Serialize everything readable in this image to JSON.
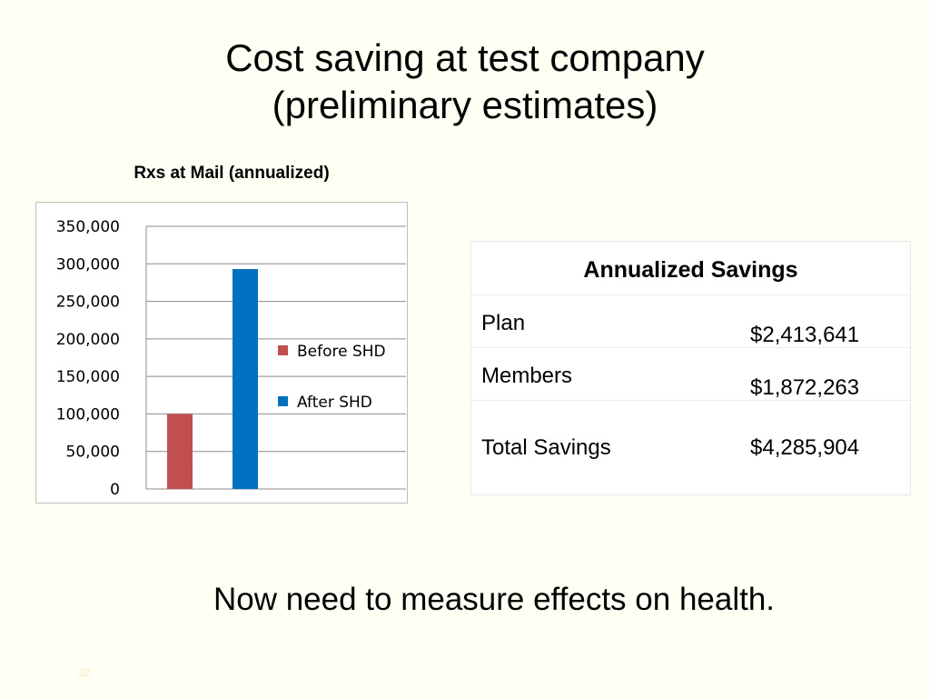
{
  "slide": {
    "title_line1": "Cost saving at test company",
    "title_line2": "(preliminary estimates)",
    "footer": "Now need to measure effects on health.",
    "page_number": "32"
  },
  "chart_data": {
    "type": "bar",
    "title": "Rxs at Mail (annualized)",
    "xlabel": "",
    "ylabel": "",
    "ylim": [
      0,
      350000
    ],
    "yticks": [
      0,
      50000,
      100000,
      150000,
      200000,
      250000,
      300000,
      350000
    ],
    "ytick_labels": [
      "0",
      "50,000",
      "100,000",
      "150,000",
      "200,000",
      "250,000",
      "300,000",
      "350,000"
    ],
    "grid": true,
    "legend_position": "right",
    "series": [
      {
        "name": "Before SHD",
        "values": [
          100000
        ],
        "color": "#c0504d"
      },
      {
        "name": "After SHD",
        "values": [
          293000
        ],
        "color": "#0070c0"
      }
    ]
  },
  "table": {
    "header": "Annualized Savings",
    "rows": [
      {
        "label": "Plan",
        "value": "$2,413,641"
      },
      {
        "label": "Members",
        "value": "$1,872,263"
      },
      {
        "label": "Total Savings",
        "value": "$4,285,904"
      }
    ]
  }
}
